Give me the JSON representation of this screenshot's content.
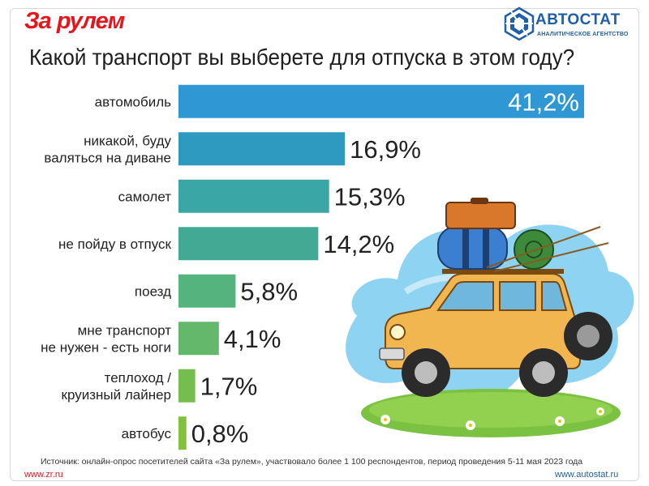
{
  "brand": {
    "left_logo": "За рулем",
    "right_logo": "АВТОСТАТ",
    "right_logo_sub": "АНАЛИТИЧЕСКОЕ АГЕНТСТВО"
  },
  "footer": {
    "source": "Источник: онлайн-опрос посетителей сайта «За рулем», участвовало более 1 100 респондентов, период проведения 5-11 мая 2023 года",
    "url_left": "www.zr.ru",
    "url_right": "www.autostat.ru"
  },
  "colors": {
    "accent_red": "#e4161c",
    "accent_blue": "#1f5fa8"
  },
  "chart_data": {
    "type": "bar",
    "orientation": "horizontal",
    "title": "Какой транспорт вы выберете для отпуска в этом году?",
    "categories": [
      [
        "автомобиль"
      ],
      [
        "никакой, буду",
        "валяться на диване"
      ],
      [
        "самолет"
      ],
      [
        "не пойду в отпуск"
      ],
      [
        "поезд"
      ],
      [
        "мне транспорт",
        "не нужен - есть ноги"
      ],
      [
        "теплоход /",
        "круизный лайнер"
      ],
      [
        "автобус"
      ]
    ],
    "values": [
      41.2,
      16.9,
      15.3,
      14.2,
      5.8,
      4.1,
      1.7,
      0.8
    ],
    "value_labels": [
      "41,2%",
      "16,9%",
      "15,3%",
      "14,2%",
      "5,8%",
      "4,1%",
      "1,7%",
      "0,8%"
    ],
    "bar_colors": [
      "#2f98d4",
      "#2e9ac0",
      "#3ba6a6",
      "#42aa94",
      "#55b37e",
      "#63b86c",
      "#75bd4e",
      "#82c03e"
    ],
    "xlim": [
      0,
      41.2
    ],
    "grid": false,
    "legend": "none"
  }
}
